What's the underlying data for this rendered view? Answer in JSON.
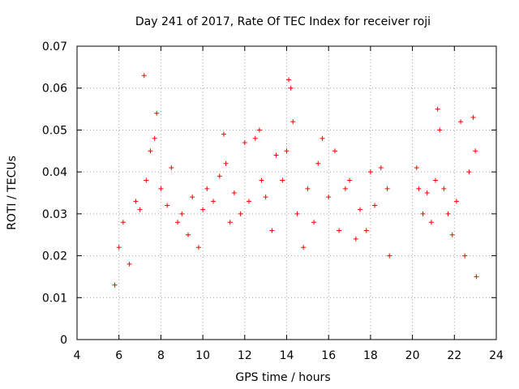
{
  "chart_data": {
    "type": "scatter",
    "title": "Day 241 of 2017, Rate Of TEC Index for receiver roji",
    "xlabel": "GPS time / hours",
    "ylabel": "ROTI / TECUs",
    "xlim": [
      4,
      24
    ],
    "ylim": [
      0,
      0.07
    ],
    "x_ticks": [
      "4",
      "6",
      "8",
      "10",
      "12",
      "14",
      "16",
      "18",
      "20",
      "22",
      "24"
    ],
    "y_ticks": [
      "0",
      "0.01",
      "0.02",
      "0.03",
      "0.04",
      "0.05",
      "0.06",
      "0.07"
    ],
    "grid": true,
    "marker": "+",
    "color": "#ff0000",
    "series": [
      {
        "name": "ROTI",
        "x": [
          5.8,
          6.0,
          6.2,
          6.5,
          6.8,
          7.0,
          7.2,
          7.3,
          7.5,
          7.7,
          7.8,
          8.0,
          8.3,
          8.5,
          8.8,
          9.0,
          9.3,
          9.5,
          9.8,
          10.0,
          10.2,
          10.5,
          10.8,
          11.0,
          11.1,
          11.3,
          11.5,
          11.8,
          12.0,
          12.2,
          12.5,
          12.7,
          12.8,
          13.0,
          13.3,
          13.5,
          13.8,
          14.0,
          14.1,
          14.2,
          14.3,
          14.5,
          14.8,
          15.0,
          15.3,
          15.5,
          15.7,
          16.0,
          16.3,
          16.5,
          16.8,
          17.0,
          17.3,
          17.5,
          17.8,
          18.0,
          18.2,
          18.5,
          18.8,
          18.9,
          20.2,
          20.3,
          20.5,
          20.7,
          20.9,
          21.1,
          21.2,
          21.3,
          21.5,
          21.7,
          21.9,
          22.1,
          22.3,
          22.5,
          22.7,
          22.9,
          23.0,
          23.05
        ],
        "y": [
          0.013,
          0.022,
          0.028,
          0.018,
          0.033,
          0.031,
          0.063,
          0.038,
          0.045,
          0.048,
          0.054,
          0.036,
          0.032,
          0.041,
          0.028,
          0.03,
          0.025,
          0.034,
          0.022,
          0.031,
          0.036,
          0.033,
          0.039,
          0.049,
          0.042,
          0.028,
          0.035,
          0.03,
          0.047,
          0.033,
          0.048,
          0.05,
          0.038,
          0.034,
          0.026,
          0.044,
          0.038,
          0.045,
          0.062,
          0.06,
          0.052,
          0.03,
          0.022,
          0.036,
          0.028,
          0.042,
          0.048,
          0.034,
          0.045,
          0.026,
          0.036,
          0.038,
          0.024,
          0.031,
          0.026,
          0.04,
          0.032,
          0.041,
          0.036,
          0.02,
          0.041,
          0.036,
          0.03,
          0.035,
          0.028,
          0.038,
          0.055,
          0.05,
          0.036,
          0.03,
          0.025,
          0.033,
          0.052,
          0.02,
          0.04,
          0.053,
          0.045,
          0.015
        ]
      }
    ]
  }
}
